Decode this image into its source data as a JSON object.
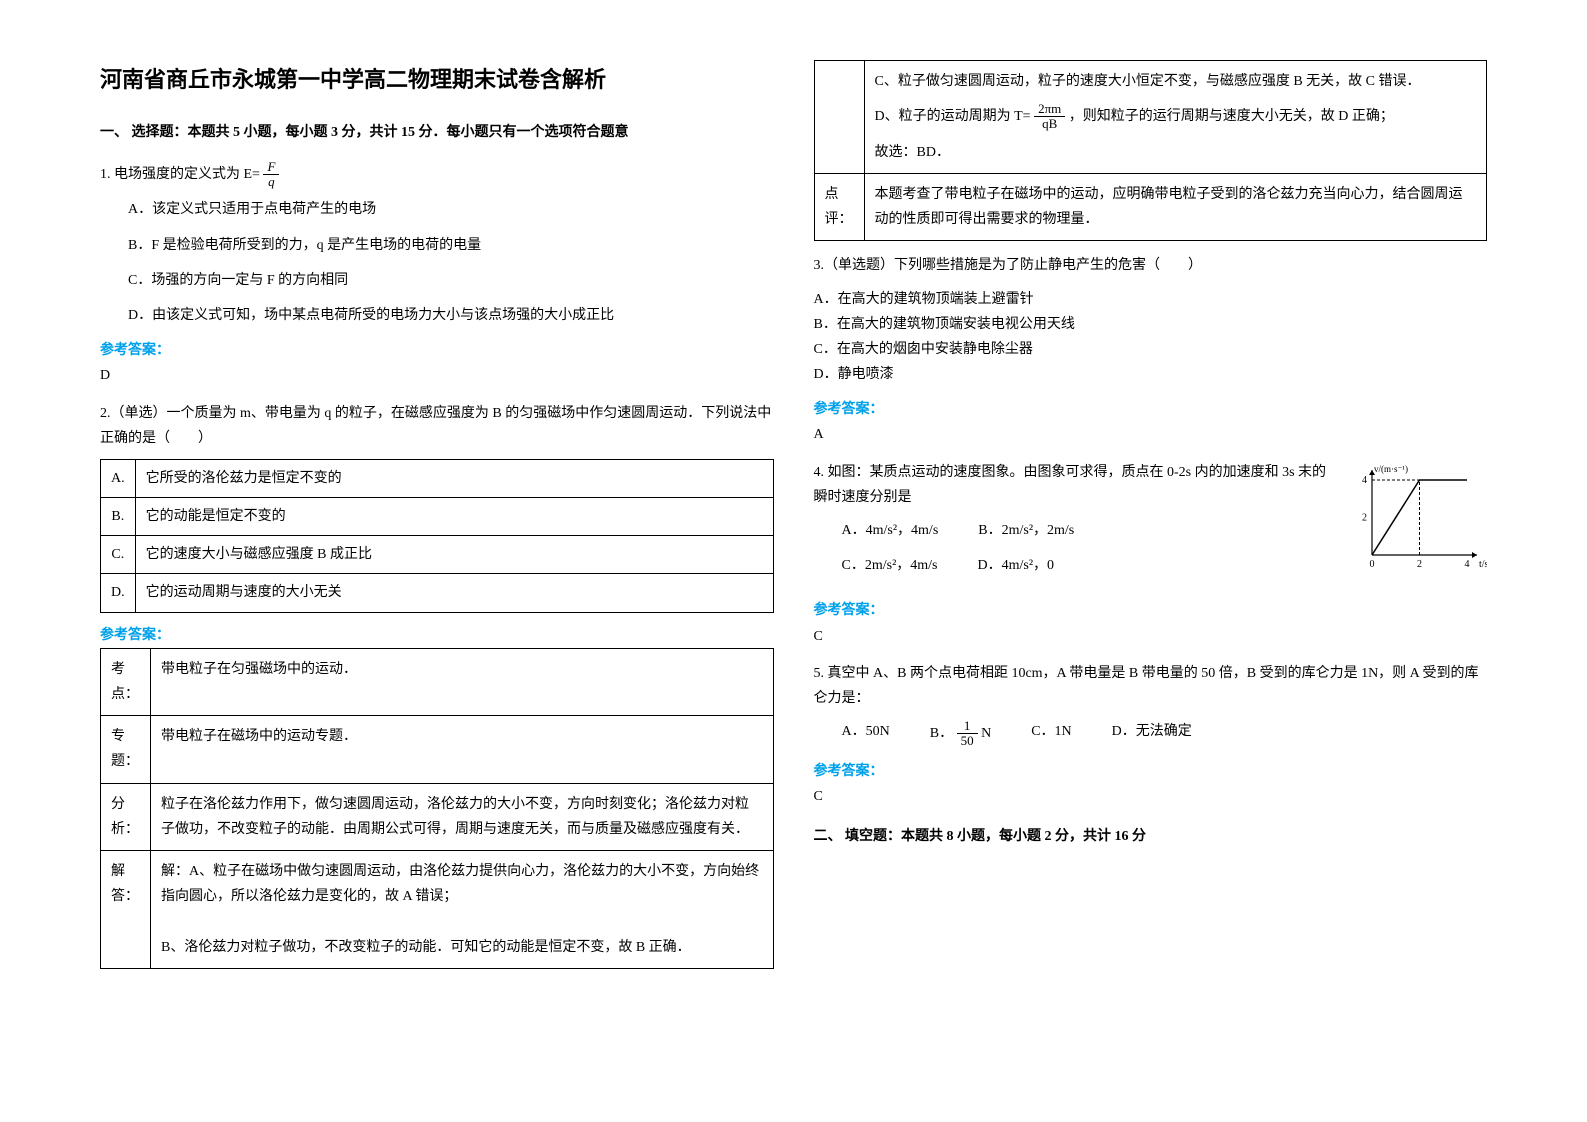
{
  "left": {
    "title": "河南省商丘市永城第一中学高二物理期末试卷含解析",
    "section1": "一、 选择题：本题共 5 小题，每小题 3 分，共计 15 分．每小题只有一个选项符合题意",
    "q1": {
      "stem_prefix": "1. 电场强度的定义式为 E=",
      "frac_num": "F",
      "frac_den": "q",
      "optA": "A．该定义式只适用于点电荷产生的电场",
      "optB": "B．F 是检验电荷所受到的力，q 是产生电场的电荷的电量",
      "optC": "C．场强的方向一定与 F 的方向相同",
      "optD": "D．由该定义式可知，场中某点电荷所受的电场力大小与该点场强的大小成正比",
      "ans_label": "参考答案：",
      "ans": "D"
    },
    "q2": {
      "stem": "2.（单选）一个质量为 m、带电量为 q 的粒子，在磁感应强度为 B 的匀强磁场中作匀速圆周运动．下列说法中正确的是（　　）",
      "rows": [
        {
          "lab": "A.",
          "txt": "它所受的洛伦兹力是恒定不变的"
        },
        {
          "lab": "B.",
          "txt": "它的动能是恒定不变的"
        },
        {
          "lab": "C.",
          "txt": "它的速度大小与磁感应强度 B 成正比"
        },
        {
          "lab": "D.",
          "txt": "它的运动周期与速度的大小无关"
        }
      ],
      "ans_label": "参考答案：",
      "analysis": [
        {
          "lab": "考点：",
          "txt": "带电粒子在匀强磁场中的运动．"
        },
        {
          "lab": "专题：",
          "txt": "带电粒子在磁场中的运动专题．"
        },
        {
          "lab": "分析：",
          "txt": "粒子在洛伦兹力作用下，做匀速圆周运动，洛伦兹力的大小不变，方向时刻变化；洛伦兹力对粒子做功，不改变粒子的动能．由周期公式可得，周期与速度无关，而与质量及磁感应强度有关．"
        },
        {
          "lab": "解答：",
          "txt": "解：A、粒子在磁场中做匀速圆周运动，由洛伦兹力提供向心力，洛伦兹力的大小不变，方向始终指向圆心，所以洛伦兹力是变化的，故 A 错误；\n\nB、洛伦兹力对粒子做功，不改变粒子的动能．可知它的动能是恒定不变，故 B 正确．"
        }
      ]
    }
  },
  "right": {
    "q2cont": {
      "rowC": "C、粒子做匀速圆周运动，粒子的速度大小恒定不变，与磁感应强度 B 无关，故 C 错误．",
      "rowD_pre": "D、粒子的运动周期为 T=",
      "rowD_frac_num": "2πm",
      "rowD_frac_den": "qB",
      "rowD_post": "，则知粒子的运行周期与速度大小无关，故 D 正确；",
      "rowD_ans": "故选：BD．",
      "review_lab": "点评：",
      "review": "本题考查了带电粒子在磁场中的运动，应明确带电粒子受到的洛仑兹力充当向心力，结合圆周运动的性质即可得出需要求的物理量．"
    },
    "q3": {
      "stem": "3.（单选题）下列哪些措施是为了防止静电产生的危害（　　）",
      "optA": "A．在高大的建筑物顶端装上避雷针",
      "optB": "B．在高大的建筑物顶端安装电视公用天线",
      "optC": "C．在高大的烟囱中安装静电除尘器",
      "optD": "D．静电喷漆",
      "ans_label": "参考答案：",
      "ans": "A"
    },
    "q4": {
      "stem": "4. 如图：某质点运动的速度图象。由图象可求得，质点在 0-2s 内的加速度和 3s 末的瞬时速度分别是",
      "optA": "A．4m/s²，4m/s",
      "optB": "B．2m/s²，2m/s",
      "optC": "C．2m/s²，4m/s",
      "optD": "D．4m/s²，0",
      "ans_label": "参考答案：",
      "ans": "C",
      "graph": {
        "ylabel": "v/(m·s⁻¹)",
        "xlabel": "t/s",
        "yticks": [
          0,
          2,
          4
        ],
        "xticks": [
          0,
          2,
          4
        ],
        "points": [
          [
            0,
            0
          ],
          [
            2,
            4
          ],
          [
            4,
            4
          ]
        ],
        "dash_v": 2,
        "dash_h": 4,
        "axis_color": "#000",
        "line_color": "#000"
      }
    },
    "q5": {
      "stem": "5. 真空中 A、B 两个点电荷相距 10cm，A 带电量是 B 带电量的 50 倍，B 受到的库仑力是 1N，则 A 受到的库仑力是：",
      "optA": "A．50N",
      "optB_pre": "B．",
      "optB_frac_num": "1",
      "optB_frac_den": "50",
      "optB_post": " N",
      "optC": "C．1N",
      "optD": "D．无法确定",
      "ans_label": "参考答案：",
      "ans": "C"
    },
    "section2": "二、 填空题：本题共 8 小题，每小题 2 分，共计 16 分"
  }
}
